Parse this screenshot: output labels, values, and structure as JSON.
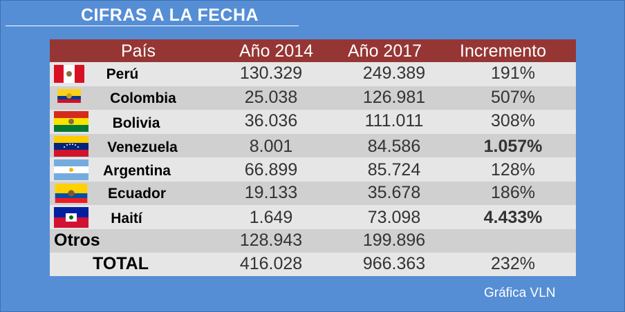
{
  "title": "CIFRAS A LA FECHA",
  "headers": {
    "pais": "País",
    "y2014": "Año 2014",
    "y2017": "Año 2017",
    "incremento": "Incremento"
  },
  "rows": [
    {
      "country": "Perú",
      "y2014": "130.329",
      "y2017": "249.389",
      "inc": "191%",
      "flag": "peru-flag-icon"
    },
    {
      "country": "Colombia",
      "y2014": "25.038",
      "y2017": "126.981",
      "inc": "507%",
      "flag": "colombia-flag-icon"
    },
    {
      "country": "Bolivia",
      "y2014": "36.036",
      "y2017": "111.011",
      "inc": "308%",
      "flag": "bolivia-flag-icon"
    },
    {
      "country": "Venezuela",
      "y2014": "8.001",
      "y2017": "84.586",
      "inc": "1.057%",
      "flag": "venezuela-flag-icon"
    },
    {
      "country": "Argentina",
      "y2014": "66.899",
      "y2017": "85.724",
      "inc": "128%",
      "flag": "argentina-flag-icon"
    },
    {
      "country": "Ecuador",
      "y2014": "19.133",
      "y2017": "35.678",
      "inc": "186%",
      "flag": "ecuador-flag-icon"
    },
    {
      "country": "Haití",
      "y2014": "1.649",
      "y2017": "73.098",
      "inc": "4.433%",
      "flag": "haiti-flag-icon"
    }
  ],
  "otros": {
    "label": "Otros",
    "y2014": "128.943",
    "y2017": "199.896"
  },
  "total": {
    "label": "TOTAL",
    "y2014": "416.028",
    "y2017": "966.363",
    "inc": "232%"
  },
  "credit": "Gráfica VLN",
  "colors": {
    "background": "#558ed5",
    "header": "#963634",
    "row_light": "#e6e6e6",
    "row_dark": "#d0d0d0"
  }
}
